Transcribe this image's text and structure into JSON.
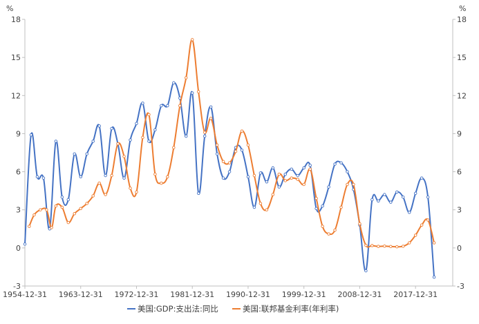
{
  "chart_data": {
    "type": "line",
    "y_unit_left": "%",
    "y_unit_right": "%",
    "ylim": [
      -3,
      18
    ],
    "yticks": [
      -3,
      0,
      3,
      6,
      9,
      12,
      15,
      18
    ],
    "xlim": [
      1954.0,
      2023.0
    ],
    "xticks": [
      {
        "label": "1954-12-31",
        "x": 1954.0
      },
      {
        "label": "1963-12-31",
        "x": 1963.0
      },
      {
        "label": "1972-12-31",
        "x": 1972.0
      },
      {
        "label": "1981-12-31",
        "x": 1981.0
      },
      {
        "label": "1990-12-31",
        "x": 1990.0
      },
      {
        "label": "1999-12-31",
        "x": 1999.0
      },
      {
        "label": "2008-12-31",
        "x": 2008.0
      },
      {
        "label": "2017-12-31",
        "x": 2017.0
      }
    ],
    "legend_position": "bottom",
    "grid": false,
    "series": [
      {
        "name": "美国:GDP:支出法:同比",
        "color": "#4472C4",
        "points": [
          [
            1954.0,
            0.3
          ],
          [
            1955.0,
            8.9
          ],
          [
            1956.0,
            5.6
          ],
          [
            1957.0,
            5.5
          ],
          [
            1958.0,
            1.5
          ],
          [
            1959.0,
            8.4
          ],
          [
            1960.0,
            4.0
          ],
          [
            1961.0,
            3.8
          ],
          [
            1962.0,
            7.4
          ],
          [
            1963.0,
            5.6
          ],
          [
            1964.0,
            7.4
          ],
          [
            1965.0,
            8.4
          ],
          [
            1966.0,
            9.6
          ],
          [
            1967.0,
            5.7
          ],
          [
            1968.0,
            9.4
          ],
          [
            1969.0,
            8.2
          ],
          [
            1970.0,
            5.5
          ],
          [
            1971.0,
            8.5
          ],
          [
            1972.0,
            9.8
          ],
          [
            1973.0,
            11.4
          ],
          [
            1974.0,
            8.4
          ],
          [
            1975.0,
            9.3
          ],
          [
            1976.0,
            11.2
          ],
          [
            1977.0,
            11.2
          ],
          [
            1978.0,
            13.0
          ],
          [
            1979.0,
            11.8
          ],
          [
            1980.0,
            8.8
          ],
          [
            1981.0,
            12.2
          ],
          [
            1982.0,
            4.3
          ],
          [
            1983.0,
            8.8
          ],
          [
            1984.0,
            11.1
          ],
          [
            1985.0,
            7.4
          ],
          [
            1986.0,
            5.5
          ],
          [
            1987.0,
            6.0
          ],
          [
            1988.0,
            7.9
          ],
          [
            1989.0,
            7.7
          ],
          [
            1990.0,
            5.6
          ],
          [
            1991.0,
            3.2
          ],
          [
            1992.0,
            5.9
          ],
          [
            1993.0,
            5.2
          ],
          [
            1994.0,
            6.3
          ],
          [
            1995.0,
            4.8
          ],
          [
            1996.0,
            5.8
          ],
          [
            1997.0,
            6.2
          ],
          [
            1998.0,
            5.7
          ],
          [
            1999.0,
            6.3
          ],
          [
            2000.0,
            6.5
          ],
          [
            2001.0,
            3.1
          ],
          [
            2002.0,
            3.3
          ],
          [
            2003.0,
            4.8
          ],
          [
            2004.0,
            6.6
          ],
          [
            2005.0,
            6.7
          ],
          [
            2006.0,
            6.0
          ],
          [
            2007.0,
            4.6
          ],
          [
            2008.0,
            1.8
          ],
          [
            2009.0,
            -1.8
          ],
          [
            2010.0,
            3.8
          ],
          [
            2011.0,
            3.7
          ],
          [
            2012.0,
            4.2
          ],
          [
            2013.0,
            3.6
          ],
          [
            2014.0,
            4.4
          ],
          [
            2015.0,
            4.0
          ],
          [
            2016.0,
            2.8
          ],
          [
            2017.0,
            4.3
          ],
          [
            2018.0,
            5.5
          ],
          [
            2019.0,
            4.0
          ],
          [
            2020.0,
            -2.3
          ]
        ]
      },
      {
        "name": "美国:联邦基金利率(年利率)",
        "color": "#ED7D31",
        "points": [
          [
            1954.7,
            1.7
          ],
          [
            1955.5,
            2.6
          ],
          [
            1956.5,
            3.0
          ],
          [
            1957.5,
            3.0
          ],
          [
            1958.3,
            1.6
          ],
          [
            1959.0,
            3.3
          ],
          [
            1960.0,
            3.2
          ],
          [
            1961.0,
            2.0
          ],
          [
            1962.0,
            2.7
          ],
          [
            1963.0,
            3.1
          ],
          [
            1964.0,
            3.5
          ],
          [
            1965.0,
            4.1
          ],
          [
            1966.0,
            5.1
          ],
          [
            1967.0,
            4.2
          ],
          [
            1968.0,
            5.7
          ],
          [
            1969.0,
            8.2
          ],
          [
            1970.0,
            7.2
          ],
          [
            1971.0,
            4.7
          ],
          [
            1972.0,
            4.4
          ],
          [
            1973.0,
            8.7
          ],
          [
            1974.0,
            10.5
          ],
          [
            1975.0,
            5.8
          ],
          [
            1976.0,
            5.1
          ],
          [
            1977.0,
            5.6
          ],
          [
            1978.0,
            7.9
          ],
          [
            1979.0,
            11.2
          ],
          [
            1980.0,
            13.4
          ],
          [
            1981.0,
            16.4
          ],
          [
            1982.0,
            12.3
          ],
          [
            1983.0,
            9.1
          ],
          [
            1984.0,
            10.2
          ],
          [
            1985.0,
            8.1
          ],
          [
            1986.0,
            6.8
          ],
          [
            1987.0,
            6.7
          ],
          [
            1988.0,
            7.6
          ],
          [
            1989.0,
            9.2
          ],
          [
            1990.0,
            8.1
          ],
          [
            1991.0,
            5.7
          ],
          [
            1992.0,
            3.5
          ],
          [
            1993.0,
            3.0
          ],
          [
            1994.0,
            4.2
          ],
          [
            1995.0,
            5.8
          ],
          [
            1996.0,
            5.3
          ],
          [
            1997.0,
            5.5
          ],
          [
            1998.0,
            5.4
          ],
          [
            1999.0,
            5.0
          ],
          [
            2000.0,
            6.2
          ],
          [
            2001.0,
            3.9
          ],
          [
            2002.0,
            1.7
          ],
          [
            2003.0,
            1.1
          ],
          [
            2004.0,
            1.4
          ],
          [
            2005.0,
            3.2
          ],
          [
            2006.0,
            5.0
          ],
          [
            2007.0,
            5.0
          ],
          [
            2008.0,
            1.9
          ],
          [
            2009.0,
            0.2
          ],
          [
            2010.0,
            0.18
          ],
          [
            2011.0,
            0.12
          ],
          [
            2012.0,
            0.14
          ],
          [
            2013.0,
            0.11
          ],
          [
            2014.0,
            0.09
          ],
          [
            2015.0,
            0.13
          ],
          [
            2016.0,
            0.4
          ],
          [
            2017.0,
            1.0
          ],
          [
            2018.0,
            1.8
          ],
          [
            2019.0,
            2.2
          ],
          [
            2020.0,
            0.4
          ]
        ]
      }
    ]
  }
}
